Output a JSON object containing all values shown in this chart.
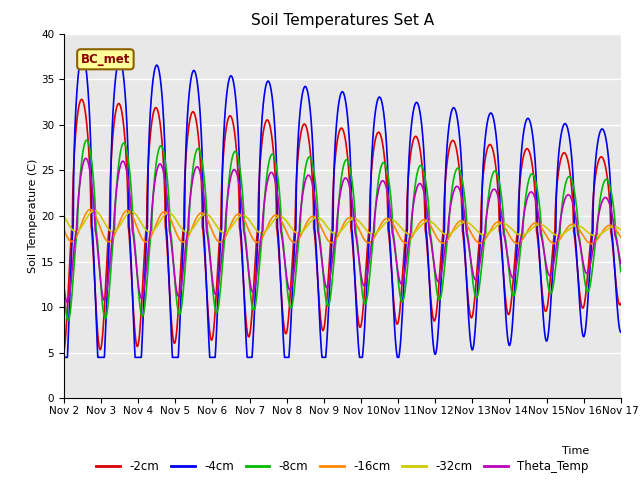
{
  "title": "Soil Temperatures Set A",
  "xlabel": "Time",
  "ylabel": "Soil Temperature (C)",
  "ylim": [
    0,
    40
  ],
  "xlim": [
    0,
    15
  ],
  "xtick_labels": [
    "Nov 2",
    "Nov 3",
    "Nov 4",
    "Nov 5",
    "Nov 6",
    "Nov 7",
    "Nov 8",
    "Nov 9",
    "Nov 10",
    "Nov 11",
    "Nov 12",
    "Nov 13",
    "Nov 14",
    "Nov 15",
    "Nov 16",
    "Nov 17"
  ],
  "annotation_text": "BC_met",
  "series": {
    "-2cm": {
      "color": "#dd0000",
      "lw": 1.2
    },
    "-4cm": {
      "color": "#0000ee",
      "lw": 1.2
    },
    "-8cm": {
      "color": "#00bb00",
      "lw": 1.2
    },
    "-16cm": {
      "color": "#ff8800",
      "lw": 1.2
    },
    "-32cm": {
      "color": "#cccc00",
      "lw": 1.2
    },
    "Theta_Temp": {
      "color": "#bb00bb",
      "lw": 1.2
    }
  },
  "legend_order": [
    "-2cm",
    "-4cm",
    "-8cm",
    "-16cm",
    "-32cm",
    "Theta_Temp"
  ],
  "bg_color": "#e8e8e8",
  "fig_bg": "#ffffff",
  "grid_color": "#ffffff",
  "title_fontsize": 11,
  "label_fontsize": 8,
  "tick_fontsize": 7.5,
  "legend_fontsize": 8.5
}
